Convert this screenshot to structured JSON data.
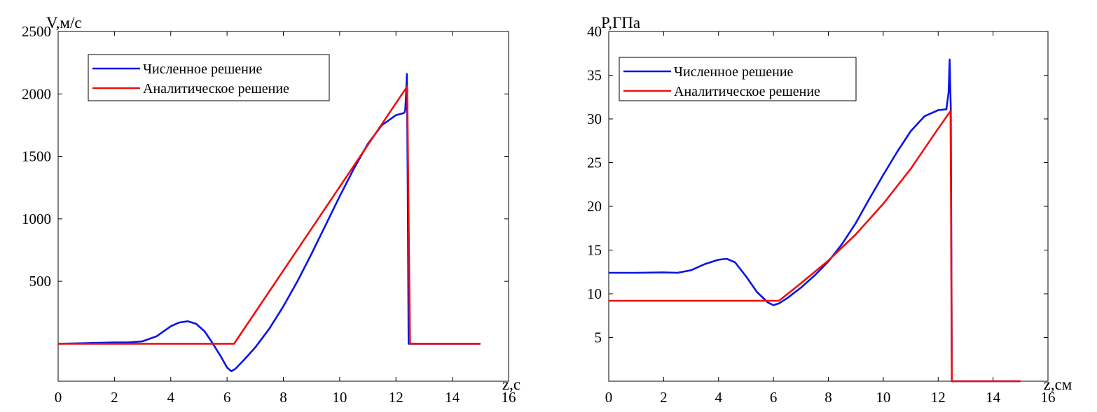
{
  "colors": {
    "numerical": "#0a14e6",
    "analytical": "#ee1010",
    "axis": "#000000",
    "background": "#ffffff"
  },
  "chart_data": [
    {
      "type": "line",
      "title": "",
      "xlabel": "z,c",
      "ylabel": "V,м/с",
      "xlim": [
        0,
        16
      ],
      "ylim": [
        -300,
        2500
      ],
      "xticks": [
        0,
        2,
        4,
        6,
        8,
        10,
        12,
        14,
        16
      ],
      "yticks": [
        500,
        1000,
        1500,
        2000,
        2500
      ],
      "grid": false,
      "legend_position": "top-left",
      "series": [
        {
          "name": "Численное решение",
          "color": "#0a14e6",
          "x": [
            0,
            1,
            2,
            2.5,
            3,
            3.5,
            4,
            4.3,
            4.6,
            4.9,
            5.2,
            5.5,
            5.8,
            6.0,
            6.15,
            6.3,
            6.6,
            7,
            7.5,
            8,
            8.5,
            9,
            9.5,
            10,
            10.5,
            11,
            11.5,
            12,
            12.25,
            12.3,
            12.33,
            12.36,
            12.39,
            12.42,
            12.45,
            12.5,
            13,
            14,
            15
          ],
          "y": [
            0,
            5,
            10,
            10,
            20,
            60,
            140,
            170,
            180,
            160,
            100,
            0,
            -110,
            -190,
            -220,
            -200,
            -130,
            -30,
            120,
            300,
            500,
            720,
            950,
            1180,
            1400,
            1600,
            1750,
            1830,
            1845,
            1850,
            1870,
            2000,
            2160,
            1200,
            0,
            0,
            0,
            0,
            0
          ]
        },
        {
          "name": "Аналитическое решение",
          "color": "#ee1010",
          "x": [
            0,
            6.25,
            12.4,
            12.5,
            15
          ],
          "y": [
            0,
            0,
            2060,
            0,
            0
          ]
        }
      ]
    },
    {
      "type": "line",
      "title": "",
      "xlabel": "z,см",
      "ylabel": "P,ГПа",
      "xlim": [
        0,
        16
      ],
      "ylim": [
        0,
        40
      ],
      "xticks": [
        0,
        2,
        4,
        6,
        8,
        10,
        12,
        14,
        16
      ],
      "yticks": [
        5,
        10,
        15,
        20,
        25,
        30,
        35,
        40
      ],
      "grid": false,
      "legend_position": "top-left",
      "series": [
        {
          "name": "Численное решение",
          "color": "#0a14e6",
          "x": [
            0,
            1,
            2,
            2.5,
            3,
            3.5,
            4,
            4.3,
            4.6,
            5,
            5.4,
            5.8,
            6.0,
            6.2,
            6.5,
            7,
            7.5,
            8,
            8.5,
            9,
            9.5,
            10,
            10.5,
            11,
            11.5,
            12,
            12.3,
            12.38,
            12.42,
            12.46,
            12.5,
            12.55,
            13,
            14,
            15
          ],
          "y": [
            12.4,
            12.4,
            12.45,
            12.4,
            12.7,
            13.4,
            13.9,
            14.0,
            13.6,
            12.0,
            10.2,
            9.0,
            8.7,
            8.9,
            9.5,
            10.7,
            12.1,
            13.7,
            15.7,
            18.1,
            20.9,
            23.6,
            26.2,
            28.6,
            30.3,
            31.0,
            31.1,
            33.0,
            36.8,
            31.0,
            0,
            0,
            0,
            0,
            0
          ]
        },
        {
          "name": "Аналитическое решение",
          "color": "#ee1010",
          "x": [
            0,
            6.2,
            7,
            8,
            9,
            10,
            11,
            12,
            12.45,
            12.5,
            15
          ],
          "y": [
            9.2,
            9.2,
            11.2,
            13.8,
            16.8,
            20.3,
            24.3,
            28.9,
            30.9,
            0,
            0
          ]
        }
      ]
    }
  ]
}
